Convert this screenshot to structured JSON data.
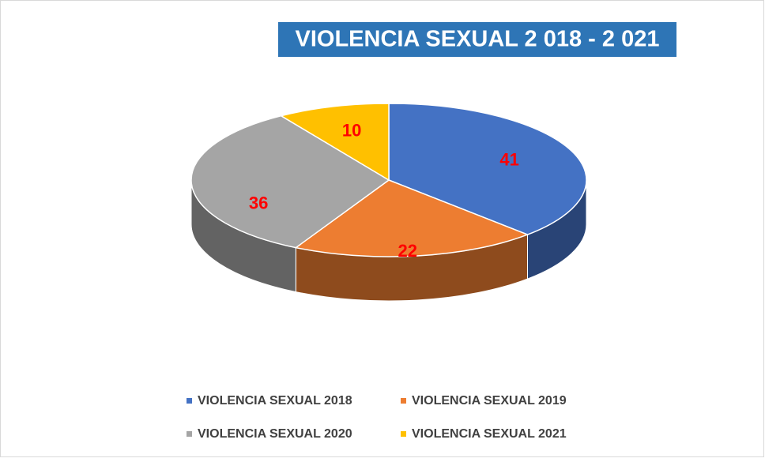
{
  "chart_data": {
    "type": "pie",
    "title": "VIOLENCIA SEXUAL 2 018 - 2 021",
    "categories": [
      "VIOLENCIA SEXUAL 2018",
      "VIOLENCIA SEXUAL 2019",
      "VIOLENCIA SEXUAL 2020",
      "VIOLENCIA SEXUAL 2021"
    ],
    "values": [
      41,
      22,
      36,
      10
    ],
    "colors": [
      "#4472c4",
      "#ed7d31",
      "#a5a5a5",
      "#ffc000"
    ],
    "legend": "bottom"
  }
}
